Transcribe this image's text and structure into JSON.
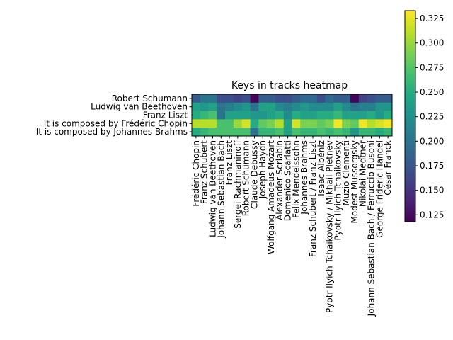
{
  "chart_data": {
    "type": "heatmap",
    "title": "Keys in tracks heatmap",
    "xlabel": "",
    "ylabel": "",
    "rows": [
      "Robert Schumann",
      "Ludwig van Beethoven",
      "Franz Liszt",
      "It is composed by Frédéric Chopin",
      "It is composed by Johannes Brahms"
    ],
    "columns": [
      "Frédéric Chopin",
      "Franz Schubert",
      "Ludwig van Beethoven",
      "Johann Sebastian Bach",
      "Franz Liszt",
      "Sergei Rachmaninoff",
      "Robert Schumann",
      "Claude Debussy",
      "Joseph Haydn",
      "Wolfgang Amadeus Mozart",
      "Alexander Scriabin",
      "Domenico Scarlatti",
      "Felix Mendelssohn",
      "Johannes Brahms",
      "Franz Schubert / Franz Liszt",
      "Isaac Albéniz",
      "Pyotr Ilyich Tchaikovsky / Mikhail Pletnev",
      "Pyotr Ilyich Tchaikovsky",
      "Muzio Clementi",
      "Modest Mussorgsky",
      "Nikolai Medtner",
      "Johann Sebastian Bach / Ferruccio Busoni",
      "George Frideric Handel",
      "César Franck"
    ],
    "values": [
      [
        0.18,
        0.2,
        0.2,
        0.17,
        0.17,
        0.16,
        0.17,
        0.12,
        0.18,
        0.18,
        0.17,
        0.17,
        0.18,
        0.19,
        0.19,
        0.17,
        0.19,
        0.18,
        0.18,
        0.12,
        0.16,
        0.17,
        0.18,
        0.18
      ],
      [
        0.24,
        0.23,
        0.24,
        0.2,
        0.21,
        0.22,
        0.23,
        0.2,
        0.24,
        0.24,
        0.22,
        0.21,
        0.22,
        0.23,
        0.22,
        0.22,
        0.22,
        0.24,
        0.22,
        0.2,
        0.21,
        0.21,
        0.23,
        0.23
      ],
      [
        0.25,
        0.26,
        0.27,
        0.2,
        0.24,
        0.24,
        0.24,
        0.23,
        0.23,
        0.24,
        0.25,
        0.22,
        0.25,
        0.24,
        0.24,
        0.25,
        0.25,
        0.26,
        0.24,
        0.24,
        0.24,
        0.25,
        0.23,
        0.25
      ],
      [
        0.31,
        0.31,
        0.31,
        0.27,
        0.27,
        0.3,
        0.32,
        0.25,
        0.28,
        0.29,
        0.31,
        0.24,
        0.32,
        0.29,
        0.29,
        0.28,
        0.29,
        0.33,
        0.29,
        0.28,
        0.33,
        0.31,
        0.32,
        0.33
      ],
      [
        0.25,
        0.26,
        0.27,
        0.27,
        0.27,
        0.27,
        0.27,
        0.2,
        0.26,
        0.26,
        0.27,
        0.24,
        0.27,
        0.26,
        0.26,
        0.27,
        0.26,
        0.27,
        0.26,
        0.23,
        0.26,
        0.26,
        0.25,
        0.26
      ]
    ],
    "colorbar": {
      "colormap": "viridis",
      "range": [
        0.118,
        0.333
      ],
      "ticks": [
        0.125,
        0.15,
        0.175,
        0.2,
        0.225,
        0.25,
        0.275,
        0.3,
        0.325
      ],
      "tick_labels": [
        "0.125",
        "0.150",
        "0.175",
        "0.200",
        "0.225",
        "0.250",
        "0.275",
        "0.300",
        "0.325"
      ]
    }
  }
}
